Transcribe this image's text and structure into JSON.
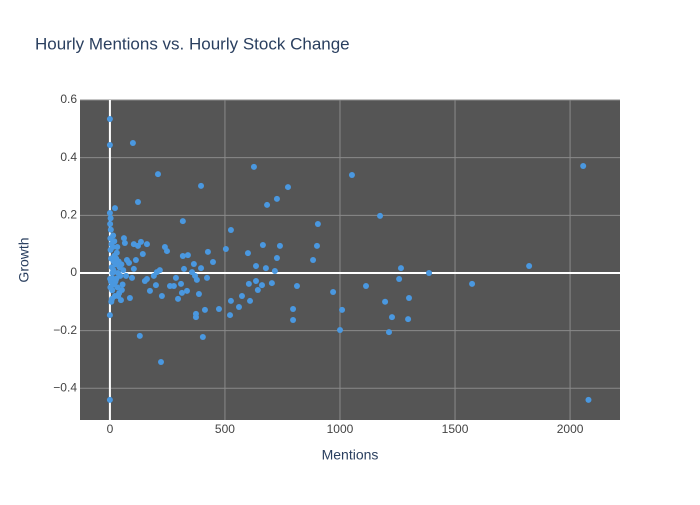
{
  "chart_data": {
    "type": "scatter",
    "title": "Hourly Mentions vs. Hourly Stock Change",
    "x_label": "Mentions",
    "y_label": "Growth",
    "color": "#4a98e0",
    "x": [
      0,
      0,
      100,
      0,
      209,
      396,
      122,
      626,
      1052,
      774,
      726,
      683,
      1174,
      2057,
      1822,
      1574,
      1387,
      1265,
      1300,
      1296,
      1257,
      1196,
      1226,
      1213,
      1113,
      1009,
      1000,
      970,
      904,
      900,
      883,
      813,
      796,
      796,
      739,
      726,
      717,
      704,
      678,
      665,
      661,
      643,
      635,
      635,
      604,
      600,
      609,
      574,
      561,
      526,
      526,
      504,
      522,
      474,
      448,
      422,
      426,
      413,
      404,
      387,
      396,
      378,
      365,
      374,
      374,
      370,
      357,
      339,
      322,
      335,
      317,
      317,
      313,
      309,
      296,
      287,
      278,
      261,
      248,
      239,
      226,
      222,
      217,
      204,
      200,
      191,
      174,
      161,
      161,
      152,
      143,
      135,
      130,
      122,
      113,
      104,
      104,
      96,
      87,
      83,
      74,
      70,
      65,
      61,
      52,
      48,
      22,
      0,
      0,
      2,
      3,
      5,
      5,
      8,
      10,
      12,
      15,
      18,
      20,
      22,
      25,
      28,
      30,
      33,
      35,
      38,
      40,
      42,
      45,
      4,
      6,
      1,
      2,
      7,
      9,
      13,
      16,
      19,
      24,
      27,
      32,
      36,
      50,
      55,
      58,
      3,
      1,
      11,
      14,
      2080
    ],
    "values": [
      0.534,
      0.444,
      0.451,
      -0.44,
      0.343,
      0.302,
      0.246,
      0.368,
      0.34,
      0.298,
      0.257,
      0.236,
      0.198,
      0.371,
      0.024,
      -0.038,
      0.0,
      0.017,
      -0.087,
      -0.16,
      -0.021,
      -0.1,
      -0.153,
      -0.205,
      -0.045,
      -0.128,
      -0.198,
      -0.066,
      0.17,
      0.094,
      0.045,
      -0.045,
      -0.125,
      -0.163,
      0.094,
      0.052,
      0.007,
      -0.035,
      0.017,
      0.097,
      -0.042,
      -0.059,
      0.024,
      -0.028,
      -0.038,
      0.069,
      -0.097,
      -0.08,
      -0.118,
      -0.097,
      0.149,
      0.083,
      -0.146,
      -0.125,
      0.038,
      -0.017,
      0.073,
      -0.128,
      -0.222,
      -0.073,
      0.017,
      -0.024,
      0.031,
      -0.142,
      -0.153,
      -0.01,
      0.003,
      0.062,
      0.014,
      -0.062,
      0.059,
      0.18,
      -0.069,
      -0.038,
      -0.09,
      -0.017,
      -0.045,
      -0.045,
      0.076,
      0.09,
      -0.08,
      -0.309,
      0.01,
      0.003,
      -0.042,
      -0.01,
      -0.062,
      0.1,
      -0.021,
      -0.028,
      0.066,
      0.108,
      -0.218,
      0.094,
      0.045,
      0.1,
      0.014,
      -0.017,
      -0.087,
      0.035,
      0.045,
      -0.01,
      0.104,
      0.121,
      -0.059,
      -0.094,
      0.225,
      0.208,
      -0.146,
      0.12,
      0.08,
      0.05,
      -0.03,
      0.02,
      -0.06,
      0.09,
      0.01,
      -0.04,
      0.06,
      -0.08,
      0.03,
      -0.02,
      0.07,
      -0.05,
      0.0,
      0.04,
      -0.07,
      0.02,
      -0.01,
      0.15,
      -0.1,
      0.17,
      -0.05,
      0.1,
      -0.09,
      -0.02,
      0.04,
      0.11,
      -0.03,
      0.05,
      0.09,
      -0.08,
      0.03,
      -0.04,
      0.01,
      0.19,
      -0.02,
      0.0,
      0.13,
      -0.44
    ],
    "xlim": [
      -130,
      2217
    ],
    "ylim": [
      -0.51,
      0.6
    ],
    "xticks": [
      0,
      500,
      1000,
      1500,
      2000
    ],
    "yticks": [
      {
        "value": -0.4,
        "label": "−0.4"
      },
      {
        "value": -0.2,
        "label": "−0.2"
      },
      0,
      0.2,
      0.4,
      0.6
    ],
    "grid": true
  }
}
